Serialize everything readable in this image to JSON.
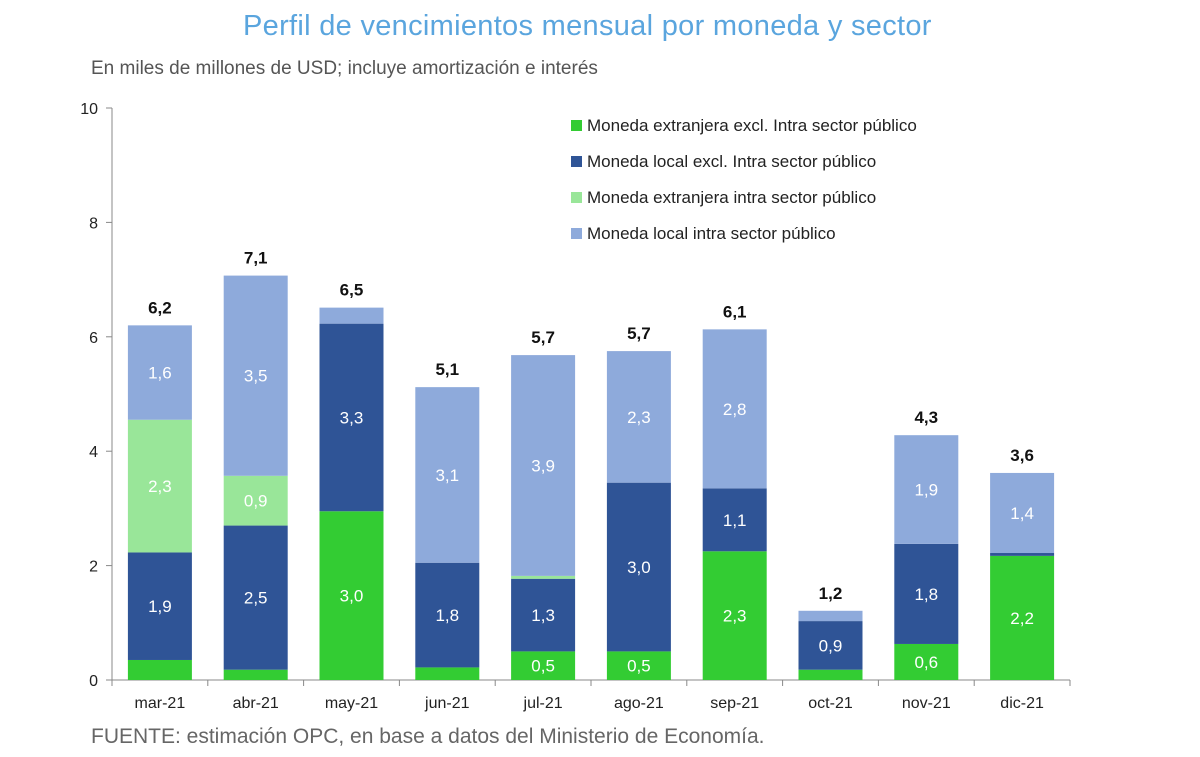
{
  "header": {
    "title": "Perfil de vencimientos mensual por moneda y sector",
    "subtitle": "En miles de millones de USD; incluye amortización e interés"
  },
  "footer": {
    "source": "FUENTE: estimación OPC, en base a datos del Ministerio de Economía."
  },
  "colors": {
    "fx_excl": "#33cc33",
    "local_excl": "#2f5496",
    "fx_intra": "#99e699",
    "local_intra": "#8eaadb"
  },
  "chart_data": {
    "type": "bar",
    "stacked": true,
    "categories": [
      "mar-21",
      "abr-21",
      "may-21",
      "jun-21",
      "jul-21",
      "ago-21",
      "sep-21",
      "oct-21",
      "nov-21",
      "dic-21"
    ],
    "series": [
      {
        "name": "Moneda extranjera excl. Intra sector público",
        "color_key": "fx_excl",
        "values": [
          0.35,
          0.18,
          2.95,
          0.22,
          0.5,
          0.5,
          2.25,
          0.18,
          0.63,
          2.17
        ],
        "labels": [
          "",
          "",
          "3,0",
          "",
          "0,5",
          "0,5",
          "2,3",
          "",
          "0,6",
          "2,2"
        ]
      },
      {
        "name": "Moneda local excl. Intra sector público",
        "color_key": "local_excl",
        "values": [
          1.88,
          2.52,
          3.28,
          1.83,
          1.27,
          2.95,
          1.1,
          0.85,
          1.75,
          0.05
        ],
        "labels": [
          "1,9",
          "2,5",
          "3,3",
          "1,8",
          "1,3",
          "3,0",
          "1,1",
          "0,9",
          "1,8",
          ""
        ]
      },
      {
        "name": "Moneda extranjera intra sector público",
        "color_key": "fx_intra",
        "values": [
          2.32,
          0.87,
          0,
          0,
          0.05,
          0,
          0,
          0,
          0,
          0
        ],
        "labels": [
          "2,3",
          "0,9",
          "",
          "",
          "",
          "",
          "",
          "",
          "",
          ""
        ]
      },
      {
        "name": "Moneda local intra sector público",
        "color_key": "local_intra",
        "values": [
          1.65,
          3.5,
          0.28,
          3.07,
          3.86,
          2.3,
          2.78,
          0.18,
          1.9,
          1.4
        ],
        "labels": [
          "1,6",
          "3,5",
          "",
          "3,1",
          "3,9",
          "2,3",
          "2,8",
          "",
          "1,9",
          "1,4"
        ]
      }
    ],
    "totals": [
      "6,2",
      "7,1",
      "6,5",
      "5,1",
      "5,7",
      "5,7",
      "6,1",
      "1,2",
      "4,3",
      "3,6"
    ],
    "ylim": [
      0,
      10
    ],
    "yticks": [
      0,
      2,
      4,
      6,
      8,
      10
    ],
    "xlabel": "",
    "ylabel": "",
    "grid": false,
    "legend_position": "top-right"
  }
}
